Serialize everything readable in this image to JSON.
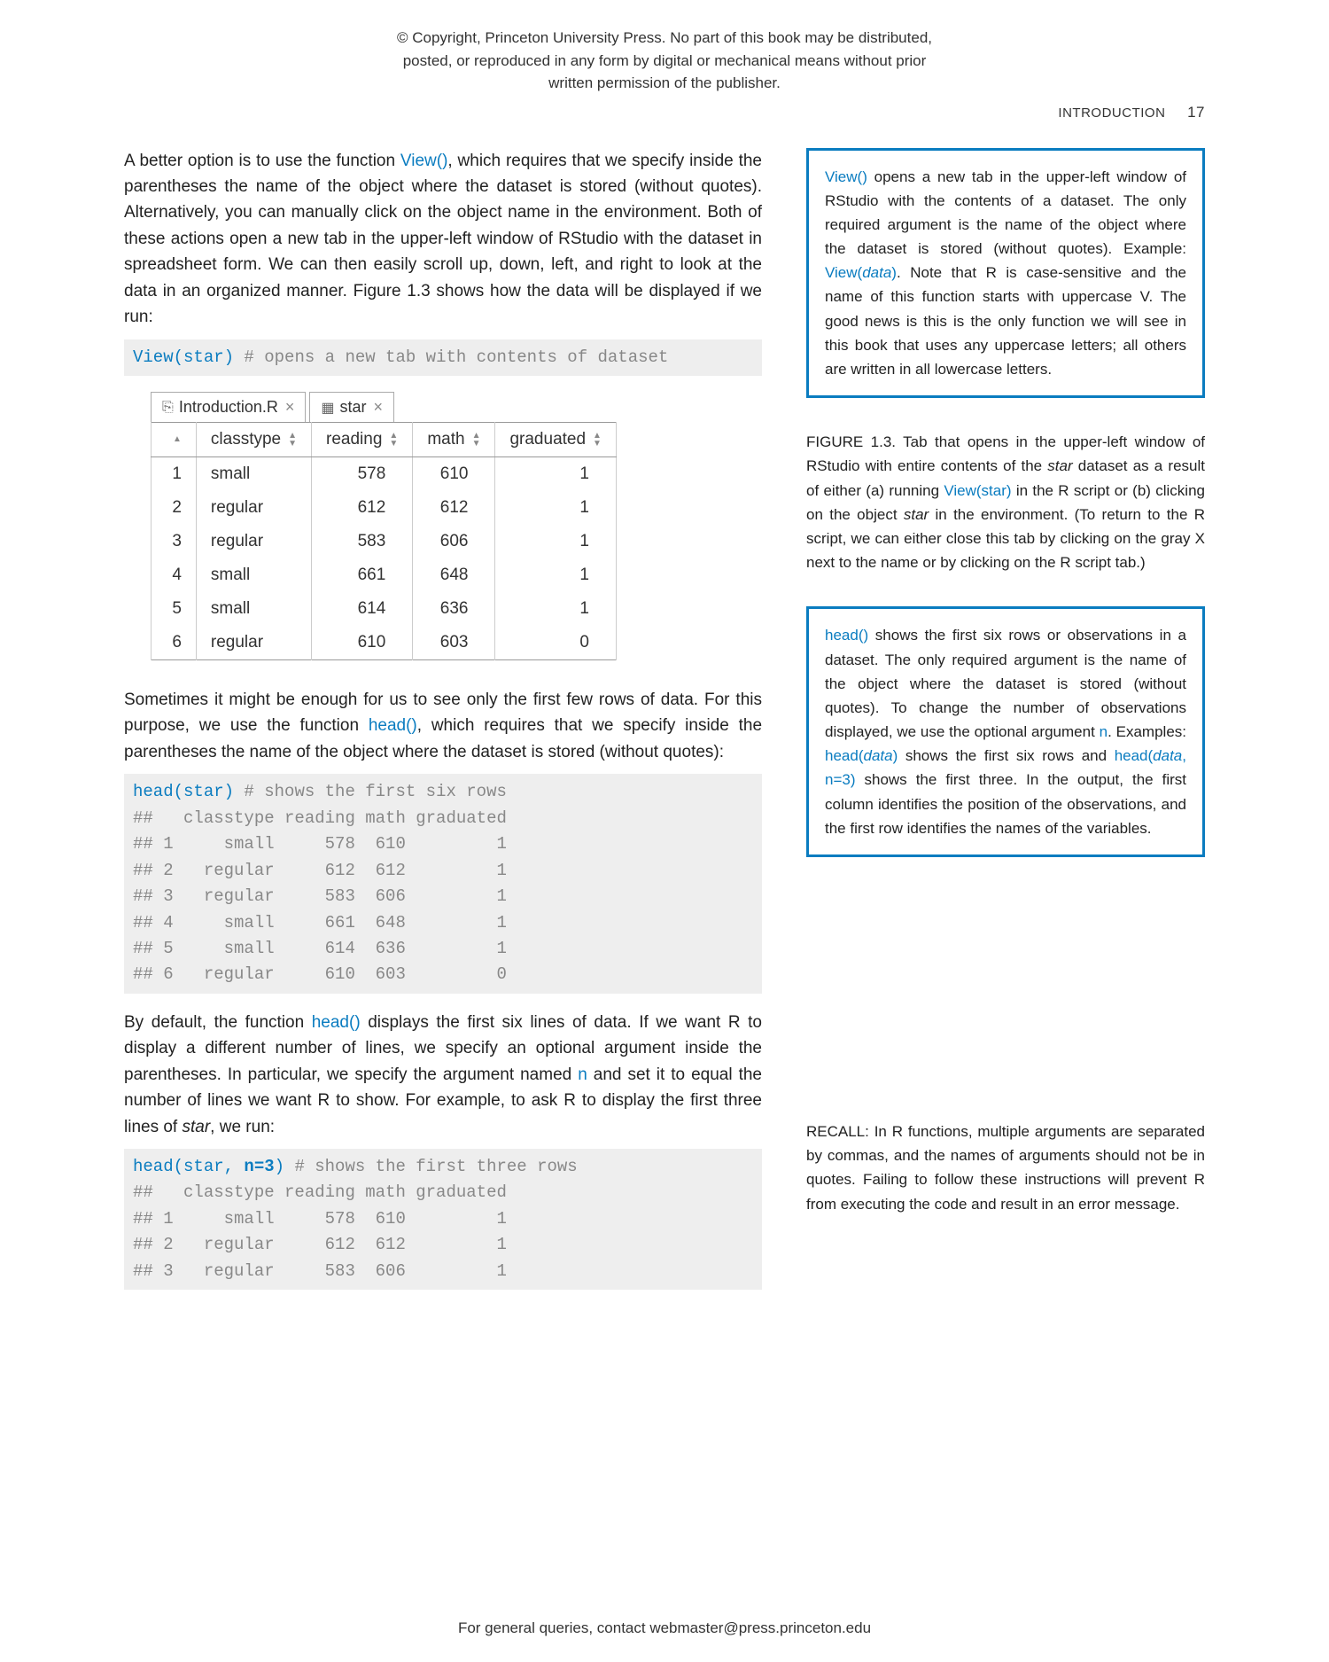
{
  "copyright": "© Copyright, Princeton University Press. No part of this book may be distributed, posted, or reproduced in any form by digital or mechanical means without prior written permission of the publisher.",
  "header": {
    "section": "INTRODUCTION",
    "page": "17"
  },
  "footer": "For general queries, contact webmaster@press.princeton.edu",
  "para1_a": "A better option is to use the function ",
  "para1_fn": "View()",
  "para1_b": ", which requires that we specify inside the parentheses the name of the object where the dataset is stored (without quotes). Alternatively, you can manually click on the object name in the environment. Both of these actions open a new tab in the upper-left window of RStudio with the dataset in spreadsheet form. We can then easily scroll up, down, left, and right to look at the data in an organized manner. Figure 1.3 shows how the data will be displayed if we run:",
  "code1": {
    "call": "View(star)",
    "comment": " # opens a new tab with contents of dataset"
  },
  "rstudio": {
    "tabs": [
      {
        "icon": "⎘",
        "label": "Introduction.R",
        "close": "×"
      },
      {
        "icon": "▦",
        "label": "star",
        "close": "×"
      }
    ],
    "table": {
      "columns": [
        "",
        "classtype",
        "reading",
        "math",
        "graduated"
      ],
      "rows": [
        [
          "1",
          "small",
          "578",
          "610",
          "1"
        ],
        [
          "2",
          "regular",
          "612",
          "612",
          "1"
        ],
        [
          "3",
          "regular",
          "583",
          "606",
          "1"
        ],
        [
          "4",
          "small",
          "661",
          "648",
          "1"
        ],
        [
          "5",
          "small",
          "614",
          "636",
          "1"
        ],
        [
          "6",
          "regular",
          "610",
          "603",
          "0"
        ]
      ]
    }
  },
  "para2_a": "Sometimes it might be enough for us to see only the first few rows of data. For this purpose, we use the function ",
  "para2_fn": "head()",
  "para2_b": ", which requires that we specify inside the parentheses the name of the object where the dataset is stored (without quotes):",
  "code2": {
    "call": "head(star)",
    "comment": " # shows the first six rows",
    "lines": [
      "##   classtype reading math graduated",
      "## 1     small     578  610         1",
      "## 2   regular     612  612         1",
      "## 3   regular     583  606         1",
      "## 4     small     661  648         1",
      "## 5     small     614  636         1",
      "## 6   regular     610  603         0"
    ]
  },
  "para3_a": "By default, the function ",
  "para3_fn": "head()",
  "para3_b": " displays the first six lines of data. If we want R to display a different number of lines, we specify an optional argument inside the parentheses. In particular, we specify the argument named ",
  "para3_arg": "n",
  "para3_c": " and set it to equal the number of lines we want R to show. For example, to ask R to display the first three lines of ",
  "para3_it": "star",
  "para3_d": ", we run:",
  "code3": {
    "call_a": "head(star, ",
    "call_b": "n=3",
    "call_c": ")",
    "comment": " # shows the first three rows",
    "lines": [
      "##   classtype reading math graduated",
      "## 1     small     578  610         1",
      "## 2   regular     612  612         1",
      "## 3   regular     583  606         1"
    ]
  },
  "sidebar": {
    "box1_a": "View()",
    "box1_b": " opens a new tab in the upper-left window of RStudio with the contents of a dataset. The only required argument is the name of the object where the dataset is stored (without quotes). Example: ",
    "box1_c": "View(",
    "box1_d": "data",
    "box1_e": ")",
    "box1_f": ". Note that R is case-sensitive and the name of this function starts with uppercase V. The good news is this is the only function we will see in this book that uses any uppercase letters; all others are written in all lowercase letters.",
    "caption_a": "FIGURE 1.3.   Tab that opens in the upper-left window of RStudio with entire contents of the ",
    "caption_it1": "star",
    "caption_b": " dataset as a result of either (a) running ",
    "caption_fn": "View(star)",
    "caption_c": " in the R script or (b) clicking on the object ",
    "caption_it2": "star",
    "caption_d": " in the environment. (To return to the R script, we can either close this tab by clicking on the gray X next to the name or by clicking on the R script tab.)",
    "box2_a": "head()",
    "box2_b": " shows the first six rows or observations in a dataset. The only required argument is the name of the object where the dataset is stored (without quotes). To change the number of observations displayed, we use the optional argument ",
    "box2_c": "n",
    "box2_d": ". Examples: ",
    "box2_e": "head(",
    "box2_f": "data",
    "box2_g": ")",
    "box2_h": " shows the first six rows and ",
    "box2_i": "head(",
    "box2_j": "data",
    "box2_k": ", n=3)",
    "box2_l": " shows the first three. In the output, the first column identifies the position of the observations, and the first row identifies the names of the variables.",
    "recall": "RECALL: In R functions, multiple arguments are separated by commas, and the names of arguments should not be in quotes. Failing to follow these instructions will prevent R from executing the code and result in an error message."
  },
  "colors": {
    "link": "#0a7cc0",
    "box_border": "#0a7cc0",
    "code_bg": "#eeeeee",
    "text": "#333333"
  }
}
